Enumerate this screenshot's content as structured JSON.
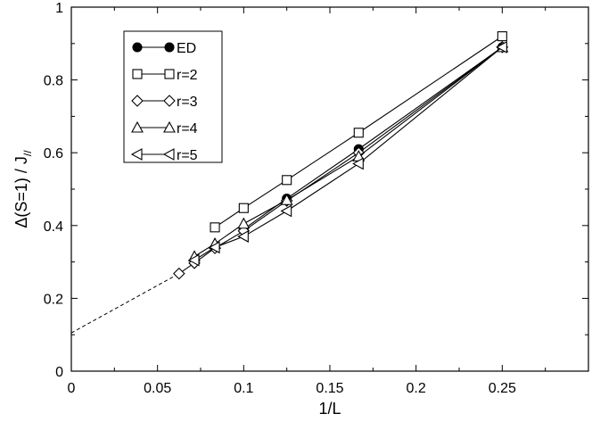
{
  "chart_data": {
    "type": "line",
    "title": "",
    "xlabel": "1/L",
    "ylabel_main": "Δ(S=1) / J",
    "ylabel_sub": "//",
    "xlim": [
      0,
      0.3
    ],
    "ylim": [
      0,
      1
    ],
    "xticks": [
      0,
      0.05,
      0.1,
      0.15,
      0.2,
      0.25
    ],
    "xtick_labels": [
      "0",
      "0.05",
      "0.1",
      "0.15",
      "0.2",
      "0.25"
    ],
    "yticks": [
      0,
      0.2,
      0.4,
      0.6,
      0.8,
      1
    ],
    "ytick_labels": [
      "0",
      "0.2",
      "0.4",
      "0.6",
      "0.8",
      "1"
    ],
    "grid": false,
    "legend_position": "top-left",
    "series": [
      {
        "name": "ED",
        "marker": "filled-circle",
        "x": [
          0.1,
          0.125,
          0.1667,
          0.25
        ],
        "y": [
          0.39,
          0.474,
          0.61,
          0.89
        ]
      },
      {
        "name": "r=2",
        "marker": "open-square",
        "x": [
          0.0833,
          0.1,
          0.125,
          0.1667,
          0.25
        ],
        "y": [
          0.395,
          0.448,
          0.525,
          0.655,
          0.92
        ]
      },
      {
        "name": "r=3",
        "marker": "open-diamond",
        "x": [
          0.0625,
          0.0714,
          0.0833,
          0.1,
          0.125,
          0.1667,
          0.25
        ],
        "y": [
          0.268,
          0.297,
          0.338,
          0.385,
          0.468,
          0.6,
          0.89
        ]
      },
      {
        "name": "r=4",
        "marker": "open-triangle-up",
        "x": [
          0.0714,
          0.0833,
          0.1,
          0.125,
          0.1667,
          0.25
        ],
        "y": [
          0.315,
          0.35,
          0.405,
          0.47,
          0.59,
          0.89
        ]
      },
      {
        "name": "r=5",
        "marker": "open-triangle-left",
        "x": [
          0.0714,
          0.0833,
          0.1,
          0.125,
          0.1667,
          0.25
        ],
        "y": [
          0.305,
          0.34,
          0.37,
          0.44,
          0.57,
          0.89
        ]
      }
    ],
    "extrapolation": {
      "style": "dashed",
      "x": [
        0,
        0.0625
      ],
      "y": [
        0.105,
        0.268
      ]
    }
  }
}
